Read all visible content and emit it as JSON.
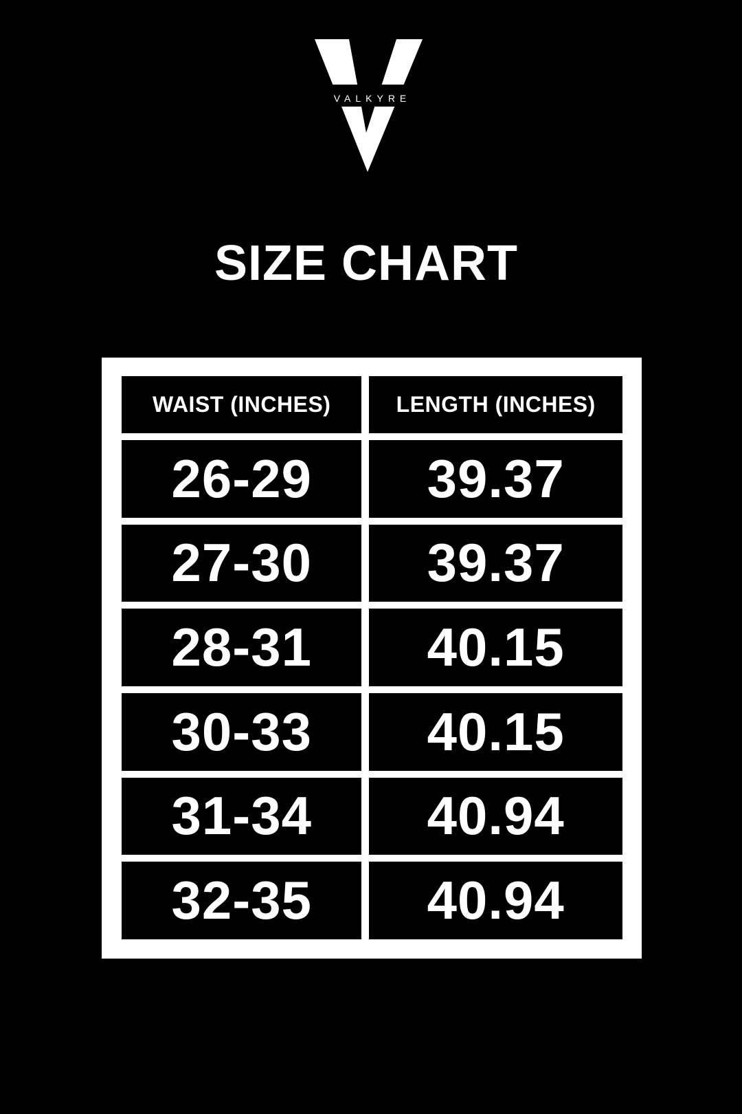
{
  "brand": {
    "name": "VALKYRE"
  },
  "title": "SIZE CHART",
  "size_table": {
    "columns": [
      {
        "key": "waist",
        "label": "WAIST (INCHES)"
      },
      {
        "key": "length",
        "label": "LENGTH (INCHES)"
      }
    ],
    "rows": [
      {
        "waist": "26-29",
        "length": "39.37"
      },
      {
        "waist": "27-30",
        "length": "39.37"
      },
      {
        "waist": "28-31",
        "length": "40.15"
      },
      {
        "waist": "30-33",
        "length": "40.15"
      },
      {
        "waist": "31-34",
        "length": "40.94"
      },
      {
        "waist": "32-35",
        "length": "40.94"
      }
    ]
  },
  "colors": {
    "background": "#000000",
    "panel": "#ffffff",
    "cell": "#000000",
    "text": "#ffffff"
  }
}
